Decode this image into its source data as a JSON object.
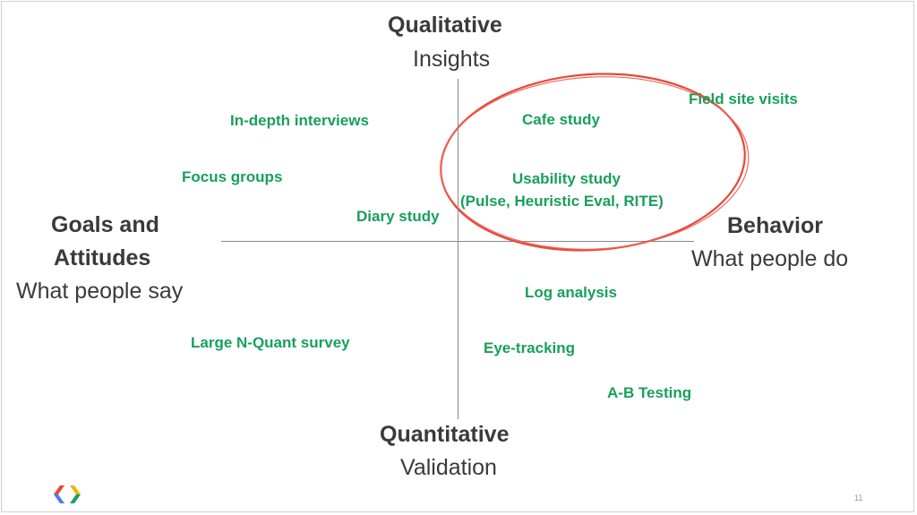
{
  "diagram": {
    "axes": {
      "top": {
        "title": "Qualitative",
        "subtitle": "Insights"
      },
      "bottom": {
        "title": "Quantitative",
        "subtitle": "Validation"
      },
      "left": {
        "title_line1": "Goals and",
        "title_line2": "Attitudes",
        "subtitle": "What people say"
      },
      "right": {
        "title": "Behavior",
        "subtitle": "What people do"
      }
    },
    "methods": [
      {
        "label": "Field site visits"
      },
      {
        "label": "Cafe study"
      },
      {
        "label": "In-depth interviews"
      },
      {
        "label": "Focus groups"
      },
      {
        "label": "Usability study"
      },
      {
        "label": "(Pulse, Heuristic Eval, RITE)"
      },
      {
        "label": "Diary study"
      },
      {
        "label": "Log analysis"
      },
      {
        "label": "Large N-Quant survey"
      },
      {
        "label": "Eye-tracking"
      },
      {
        "label": "A-B Testing"
      }
    ],
    "colors": {
      "method_text": "#18a05a",
      "axis_text": "#3a3a3a",
      "highlight_ellipse": "#e8473a",
      "axis_line": "#888888"
    }
  },
  "footer": {
    "page_number": "11",
    "logo_icon": "google-chevron-logo-icon"
  }
}
